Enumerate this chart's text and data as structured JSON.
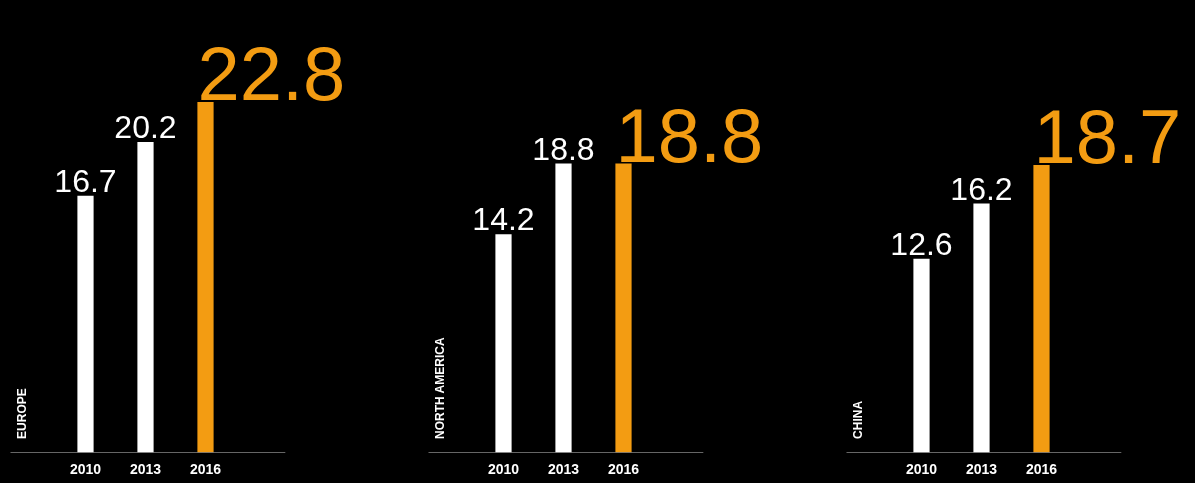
{
  "chart_data": [
    {
      "type": "bar",
      "ylabel": "EUROPE",
      "categories": [
        "2010",
        "2013",
        "2016"
      ],
      "values": [
        16.7,
        20.2,
        22.8
      ],
      "colors": [
        "#ffffff",
        "#ffffff",
        "#f39c12"
      ],
      "data_labels": true
    },
    {
      "type": "bar",
      "ylabel": "NORTH AMERICA",
      "categories": [
        "2010",
        "2013",
        "2016"
      ],
      "values": [
        14.2,
        18.8,
        18.8
      ],
      "colors": [
        "#ffffff",
        "#ffffff",
        "#f39c12"
      ],
      "data_labels": true
    },
    {
      "type": "bar",
      "ylabel": "CHINA",
      "categories": [
        "2010",
        "2013",
        "2016"
      ],
      "values": [
        12.6,
        16.2,
        18.7
      ],
      "colors": [
        "#ffffff",
        "#ffffff",
        "#f39c12"
      ],
      "data_labels": true
    }
  ]
}
